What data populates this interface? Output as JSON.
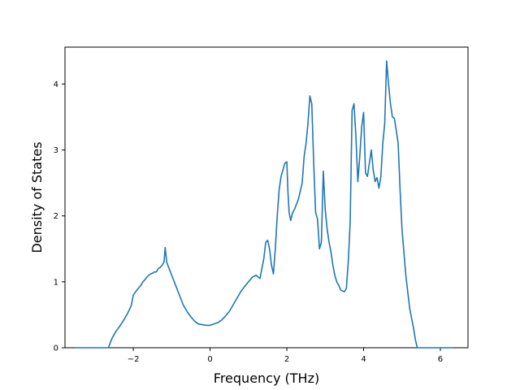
{
  "chart_data": {
    "type": "line",
    "title": "",
    "xlabel": "Frequency (THz)",
    "ylabel": "Density of States",
    "xlim": [
      -3.78,
      6.72
    ],
    "ylim": [
      0,
      4.56
    ],
    "xticks": [
      -2,
      0,
      2,
      4,
      6
    ],
    "xtick_labels": [
      "−2",
      "0",
      "2",
      "4",
      "6"
    ],
    "yticks": [
      0,
      1,
      2,
      3,
      4
    ],
    "ytick_labels": [
      "0",
      "1",
      "2",
      "3",
      "4"
    ],
    "grid": false,
    "series_color": "#1f77b4",
    "series": [
      {
        "x": [
          -3.5,
          -3.2,
          -3.0,
          -2.8,
          -2.65,
          -2.55,
          -2.45,
          -2.35,
          -2.25,
          -2.15,
          -2.1,
          -2.05,
          -2.0,
          -1.9,
          -1.8,
          -1.75,
          -1.7,
          -1.65,
          -1.6,
          -1.55,
          -1.5,
          -1.45,
          -1.4,
          -1.35,
          -1.3,
          -1.25,
          -1.2,
          -1.17,
          -1.13,
          -1.1,
          -1.0,
          -0.9,
          -0.8,
          -0.7,
          -0.6,
          -0.5,
          -0.4,
          -0.3,
          -0.2,
          -0.1,
          0.0,
          0.1,
          0.2,
          0.3,
          0.4,
          0.5,
          0.6,
          0.7,
          0.8,
          0.9,
          1.0,
          1.1,
          1.2,
          1.3,
          1.4,
          1.45,
          1.5,
          1.55,
          1.6,
          1.65,
          1.7,
          1.75,
          1.8,
          1.85,
          1.9,
          1.95,
          2.0,
          2.03,
          2.06,
          2.1,
          2.15,
          2.2,
          2.3,
          2.4,
          2.45,
          2.5,
          2.55,
          2.6,
          2.65,
          2.7,
          2.75,
          2.8,
          2.85,
          2.9,
          2.95,
          3.0,
          3.05,
          3.1,
          3.15,
          3.2,
          3.25,
          3.3,
          3.35,
          3.4,
          3.45,
          3.5,
          3.55,
          3.6,
          3.65,
          3.7,
          3.75,
          3.8,
          3.85,
          3.9,
          3.95,
          4.0,
          4.05,
          4.1,
          4.15,
          4.2,
          4.25,
          4.3,
          4.35,
          4.4,
          4.45,
          4.5,
          4.55,
          4.6,
          4.65,
          4.7,
          4.75,
          4.8,
          4.85,
          4.9,
          4.95,
          5.0,
          5.05,
          5.1,
          5.15,
          5.2,
          5.25,
          5.3,
          5.35,
          5.4,
          5.45,
          5.5,
          5.6,
          5.8,
          6.0,
          6.3
        ],
        "y": [
          0.0,
          0.0,
          0.0,
          0.0,
          0.0,
          0.15,
          0.25,
          0.33,
          0.42,
          0.52,
          0.58,
          0.65,
          0.8,
          0.88,
          0.95,
          1.0,
          1.03,
          1.07,
          1.1,
          1.12,
          1.13,
          1.15,
          1.15,
          1.2,
          1.22,
          1.25,
          1.3,
          1.52,
          1.3,
          1.25,
          1.1,
          0.95,
          0.8,
          0.65,
          0.55,
          0.47,
          0.4,
          0.36,
          0.35,
          0.34,
          0.34,
          0.36,
          0.38,
          0.42,
          0.48,
          0.55,
          0.65,
          0.75,
          0.85,
          0.93,
          1.0,
          1.07,
          1.1,
          1.05,
          1.35,
          1.6,
          1.63,
          1.5,
          1.25,
          1.12,
          1.5,
          2.0,
          2.4,
          2.6,
          2.7,
          2.8,
          2.82,
          2.35,
          2.05,
          1.93,
          2.05,
          2.1,
          2.25,
          2.5,
          2.9,
          3.1,
          3.4,
          3.82,
          3.7,
          2.8,
          2.05,
          1.95,
          1.5,
          1.6,
          2.68,
          2.1,
          1.8,
          1.6,
          1.45,
          1.25,
          1.1,
          1.0,
          0.95,
          0.88,
          0.86,
          0.85,
          0.9,
          1.3,
          1.9,
          3.6,
          3.7,
          3.2,
          2.52,
          2.9,
          3.35,
          3.57,
          2.65,
          2.6,
          2.8,
          3.0,
          2.7,
          2.52,
          2.58,
          2.42,
          2.6,
          3.1,
          3.4,
          4.35,
          4.0,
          3.7,
          3.5,
          3.48,
          3.3,
          3.1,
          2.4,
          1.8,
          1.45,
          1.1,
          0.85,
          0.6,
          0.45,
          0.3,
          0.12,
          0.0,
          0.0,
          0.0,
          0.0,
          0.0,
          0.0,
          0.0
        ]
      }
    ]
  }
}
